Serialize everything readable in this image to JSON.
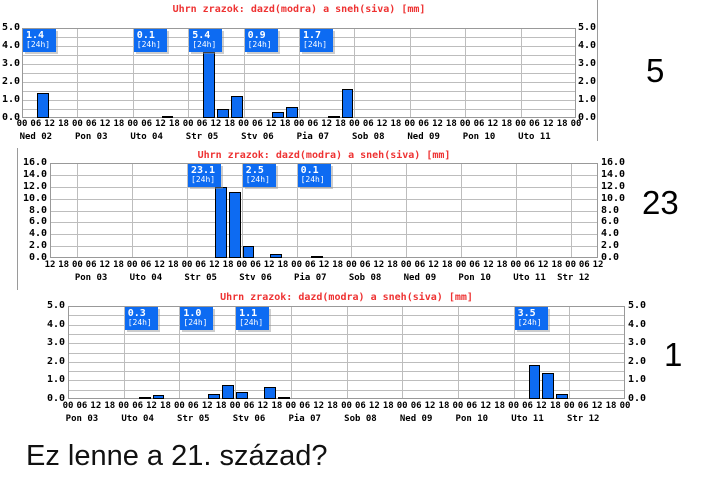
{
  "caption": "Ez lenne a 21. század?",
  "unit_label": "[24h]",
  "annotations": [
    {
      "text": "5"
    },
    {
      "text": "23"
    },
    {
      "text": "1"
    }
  ],
  "colors": {
    "rain": "#0d6bf2",
    "snow": "#333333",
    "title": "#ee3232",
    "badge_text": "#ffffff"
  },
  "chart_data": [
    {
      "type": "bar",
      "title": "Uhrn zrazok: dazd(modra) a sneh(siva) [mm]",
      "unit": "mm",
      "ylim": [
        0,
        5
      ],
      "grid_segments": 10,
      "tick_offset": 0,
      "y_ticks": [
        "5.0",
        "4.0",
        "3.0",
        "2.0",
        "1.0",
        "0.0"
      ],
      "hour_ticks": [
        "00",
        "06",
        "12",
        "18",
        "00",
        "06",
        "12",
        "18",
        "00",
        "06",
        "12",
        "18",
        "00",
        "06",
        "12",
        "18",
        "00",
        "06",
        "12",
        "18",
        "00",
        "06",
        "12",
        "18",
        "00",
        "06",
        "12",
        "18",
        "00",
        "06",
        "12",
        "18",
        "00",
        "06",
        "12",
        "18",
        "00",
        "06",
        "12",
        "18",
        "00"
      ],
      "days": [
        "Ned 02",
        "Pon 03",
        "Uto 04",
        "Str 05",
        "Stv 06",
        "Pia 07",
        "Sob 08",
        "Ned 09",
        "Pon 10",
        "Uto 11"
      ],
      "daily_totals": [
        {
          "day_index": 0,
          "label": "1.4"
        },
        {
          "day_index": 2,
          "label": "0.1"
        },
        {
          "day_index": 3,
          "label": "5.4"
        },
        {
          "day_index": 4,
          "label": "0.9"
        },
        {
          "day_index": 5,
          "label": "1.7"
        }
      ],
      "bars": [
        {
          "day_index": 0,
          "hour": 6,
          "value": 1.4,
          "kind": "rain"
        },
        {
          "day_index": 2,
          "hour": 12,
          "value": 0.1,
          "kind": "rain"
        },
        {
          "day_index": 3,
          "hour": 6,
          "value": 3.65,
          "kind": "rain"
        },
        {
          "day_index": 3,
          "hour": 12,
          "value": 0.5,
          "kind": "rain"
        },
        {
          "day_index": 3,
          "hour": 18,
          "value": 1.2,
          "kind": "rain"
        },
        {
          "day_index": 4,
          "hour": 12,
          "value": 0.35,
          "kind": "rain"
        },
        {
          "day_index": 4,
          "hour": 18,
          "value": 0.6,
          "kind": "rain"
        },
        {
          "day_index": 5,
          "hour": 12,
          "value": 0.1,
          "kind": "rain"
        },
        {
          "day_index": 5,
          "hour": 18,
          "value": 1.6,
          "kind": "rain"
        }
      ]
    },
    {
      "type": "bar",
      "title": "Uhrn zrazok: dazd(modra) a sneh(siva) [mm]",
      "unit": "mm",
      "ylim": [
        0,
        16
      ],
      "grid_segments": 8,
      "tick_offset": 2,
      "y_ticks": [
        "16.0",
        "14.0",
        "12.0",
        "10.0",
        "8.0",
        "6.0",
        "4.0",
        "2.0",
        "0.0"
      ],
      "hour_ticks": [
        "12",
        "18",
        "00",
        "06",
        "12",
        "18",
        "00",
        "06",
        "12",
        "18",
        "00",
        "06",
        "12",
        "18",
        "00",
        "06",
        "12",
        "18",
        "00",
        "06",
        "12",
        "18",
        "00",
        "06",
        "12",
        "18",
        "00",
        "06",
        "12",
        "18",
        "00",
        "06",
        "12",
        "18",
        "00",
        "06",
        "12",
        "18",
        "00",
        "06",
        "12"
      ],
      "days": [
        "Pon 03",
        "Uto 04",
        "Str 05",
        "Stv 06",
        "Pia 07",
        "Sob 08",
        "Ned 09",
        "Pon 10",
        "Uto 11",
        "Str 12"
      ],
      "daily_totals": [
        {
          "day_index": 2,
          "label": "23.1"
        },
        {
          "day_index": 3,
          "label": "2.5"
        },
        {
          "day_index": 4,
          "label": "0.1"
        }
      ],
      "bars": [
        {
          "day_index": 2,
          "hour": 12,
          "value": 11.9,
          "kind": "rain"
        },
        {
          "day_index": 2,
          "hour": 18,
          "value": 11.2,
          "kind": "rain"
        },
        {
          "day_index": 3,
          "hour": 0,
          "value": 2.0,
          "kind": "rain"
        },
        {
          "day_index": 3,
          "hour": 12,
          "value": 0.6,
          "kind": "rain"
        },
        {
          "day_index": 4,
          "hour": 6,
          "value": 0.2,
          "kind": "snow"
        }
      ]
    },
    {
      "type": "bar",
      "title": "Uhrn zrazok: dazd(modra) a sneh(siva) [mm]",
      "unit": "mm",
      "ylim": [
        0,
        5
      ],
      "grid_segments": 10,
      "tick_offset": 0,
      "y_ticks": [
        "5.0",
        "4.0",
        "3.0",
        "2.0",
        "1.0",
        "0.0"
      ],
      "hour_ticks": [
        "00",
        "06",
        "12",
        "18",
        "00",
        "06",
        "12",
        "18",
        "00",
        "06",
        "12",
        "18",
        "00",
        "06",
        "12",
        "18",
        "00",
        "06",
        "12",
        "18",
        "00",
        "06",
        "12",
        "18",
        "00",
        "06",
        "12",
        "18",
        "00",
        "06",
        "12",
        "18",
        "00",
        "06",
        "12",
        "18",
        "00",
        "06",
        "12",
        "18",
        "00"
      ],
      "days": [
        "Pon 03",
        "Uto 04",
        "Str 05",
        "Stv 06",
        "Pia 07",
        "Sob 08",
        "Ned 09",
        "Pon 10",
        "Uto 11",
        "Str 12"
      ],
      "daily_totals": [
        {
          "day_index": 1,
          "label": "0.3"
        },
        {
          "day_index": 2,
          "label": "1.0"
        },
        {
          "day_index": 3,
          "label": "1.1"
        },
        {
          "day_index": 8,
          "label": "3.5"
        }
      ],
      "bars": [
        {
          "day_index": 1,
          "hour": 6,
          "value": 0.1,
          "kind": "rain"
        },
        {
          "day_index": 1,
          "hour": 12,
          "value": 0.2,
          "kind": "rain"
        },
        {
          "day_index": 2,
          "hour": 12,
          "value": 0.25,
          "kind": "rain"
        },
        {
          "day_index": 2,
          "hour": 18,
          "value": 0.75,
          "kind": "rain"
        },
        {
          "day_index": 3,
          "hour": 0,
          "value": 0.35,
          "kind": "rain"
        },
        {
          "day_index": 3,
          "hour": 12,
          "value": 0.65,
          "kind": "rain"
        },
        {
          "day_index": 3,
          "hour": 18,
          "value": 0.1,
          "kind": "rain"
        },
        {
          "day_index": 8,
          "hour": 6,
          "value": 1.85,
          "kind": "rain"
        },
        {
          "day_index": 8,
          "hour": 12,
          "value": 1.4,
          "kind": "rain"
        },
        {
          "day_index": 8,
          "hour": 18,
          "value": 0.25,
          "kind": "rain"
        }
      ]
    }
  ]
}
